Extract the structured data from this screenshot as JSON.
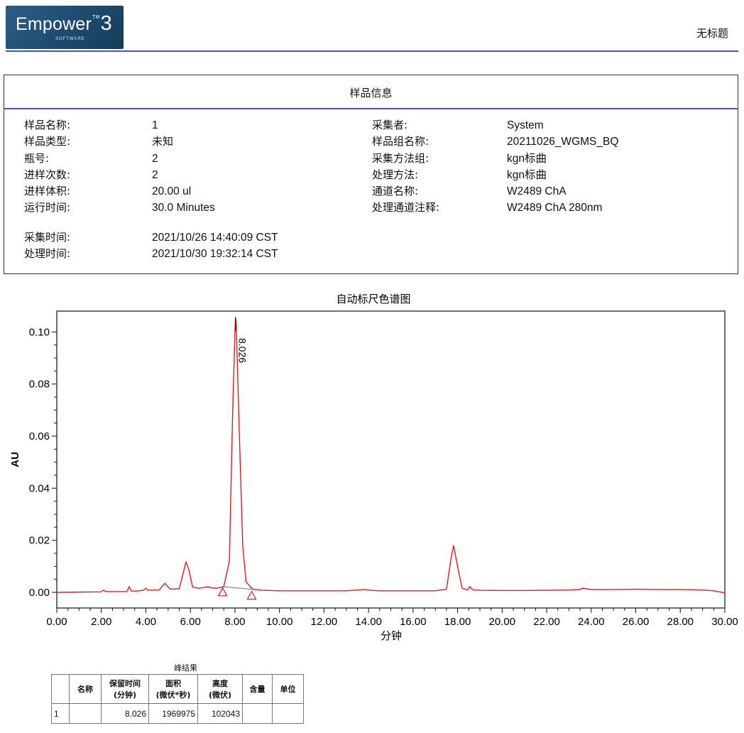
{
  "header": {
    "logo_brand": "Empower",
    "logo_tm": "TM",
    "logo_version": "3",
    "logo_sub": "SOFTWARE",
    "doc_title": "无标题"
  },
  "sample_info": {
    "title": "样品信息",
    "left": [
      {
        "label": "样品名称:",
        "value": "1"
      },
      {
        "label": "样品类型:",
        "value": "未知"
      },
      {
        "label": "瓶号:",
        "value": "2"
      },
      {
        "label": "进样次数:",
        "value": "2"
      },
      {
        "label": "进样体积:",
        "value": "20.00 ul"
      },
      {
        "label": "运行时间:",
        "value": "30.0 Minutes"
      }
    ],
    "right": [
      {
        "label": "采集者:",
        "value": "System"
      },
      {
        "label": "样品组名称:",
        "value": "20211026_WGMS_BQ"
      },
      {
        "label": "采集方法组:",
        "value": "kgn标曲"
      },
      {
        "label": "处理方法:",
        "value": "kgn标曲"
      },
      {
        "label": "通道名称:",
        "value": "W2489 ChA"
      },
      {
        "label": "处理通道注释:",
        "value": "W2489 ChA 280nm"
      }
    ],
    "times": [
      {
        "label": "采集时间:",
        "value": "2021/10/26 14:40:09 CST"
      },
      {
        "label": "处理时间:",
        "value": "2021/10/30 19:32:14 CST"
      }
    ]
  },
  "chart_data": {
    "type": "line",
    "title": "自动标尺色谱图",
    "xlabel": "分钟",
    "ylabel": "AU",
    "xlim": [
      0,
      30
    ],
    "ylim": [
      -0.006,
      0.108
    ],
    "xticks": [
      "0.00",
      "2.00",
      "4.00",
      "6.00",
      "8.00",
      "10.00",
      "12.00",
      "14.00",
      "16.00",
      "18.00",
      "20.00",
      "22.00",
      "24.00",
      "26.00",
      "28.00",
      "30.00"
    ],
    "yticks": [
      "0.00",
      "0.02",
      "0.04",
      "0.06",
      "0.08",
      "0.10"
    ],
    "series": [
      {
        "color": "#e8171b",
        "x": [
          0.0,
          1.0,
          2.0,
          2.1,
          2.2,
          2.4,
          3.15,
          3.25,
          3.35,
          3.6,
          3.9,
          4.0,
          4.1,
          4.6,
          4.85,
          4.95,
          5.1,
          5.5,
          5.8,
          5.92,
          6.1,
          6.4,
          6.7,
          6.8,
          6.9,
          7.2,
          7.5,
          7.75,
          7.9,
          8.0,
          8.026,
          8.06,
          8.2,
          8.35,
          8.5,
          8.8,
          9.2,
          10.0,
          11.0,
          12.0,
          13.0,
          13.5,
          13.8,
          14.1,
          14.5,
          15.0,
          16.0,
          17.0,
          17.5,
          17.72,
          17.82,
          17.95,
          18.2,
          18.45,
          18.55,
          18.7,
          19.0,
          20.0,
          21.0,
          22.0,
          23.0,
          23.5,
          23.6,
          24.0,
          25.0,
          26.0,
          27.0,
          28.0,
          29.0,
          29.5,
          30.0
        ],
        "y": [
          0.0,
          0.0001,
          0.0002,
          0.0009,
          0.0003,
          0.0003,
          0.0003,
          0.0022,
          0.0005,
          0.0005,
          0.0008,
          0.0016,
          0.0008,
          0.0009,
          0.0035,
          0.0025,
          0.0012,
          0.0014,
          0.0117,
          0.009,
          0.002,
          0.0016,
          0.002,
          0.0022,
          0.0018,
          0.0016,
          0.0022,
          0.012,
          0.07,
          0.1,
          0.1055,
          0.103,
          0.06,
          0.018,
          0.004,
          0.0012,
          0.0008,
          0.0006,
          0.0006,
          0.0006,
          0.0006,
          0.0009,
          0.0011,
          0.0008,
          0.0006,
          0.0006,
          0.0006,
          0.0006,
          0.0012,
          0.014,
          0.018,
          0.012,
          0.0016,
          0.0009,
          0.0022,
          0.0009,
          0.0008,
          0.0007,
          0.0007,
          0.0008,
          0.0009,
          0.0011,
          0.0016,
          0.0011,
          0.0011,
          0.0012,
          0.0011,
          0.0011,
          0.0009,
          0.0006,
          -0.0002
        ]
      }
    ],
    "baseline_markers": [
      {
        "x": 7.45,
        "y": -0.0005
      },
      {
        "x": 8.75,
        "y": -0.0018
      }
    ],
    "baseline_segment": {
      "x": [
        7.45,
        8.75
      ],
      "y": [
        0.0022,
        0.0012
      ]
    },
    "peak_label": {
      "x": 8.026,
      "text": "8.026"
    }
  },
  "peak_table": {
    "title": "峰结果",
    "headers": [
      "",
      "名称",
      "保留时间\n(分钟)",
      "面积\n(微伏*秒)",
      "高度\n(微伏)",
      "含量",
      "单位"
    ],
    "rows": [
      [
        "1",
        "",
        "8.026",
        "1969975",
        "102043",
        "",
        ""
      ]
    ]
  }
}
